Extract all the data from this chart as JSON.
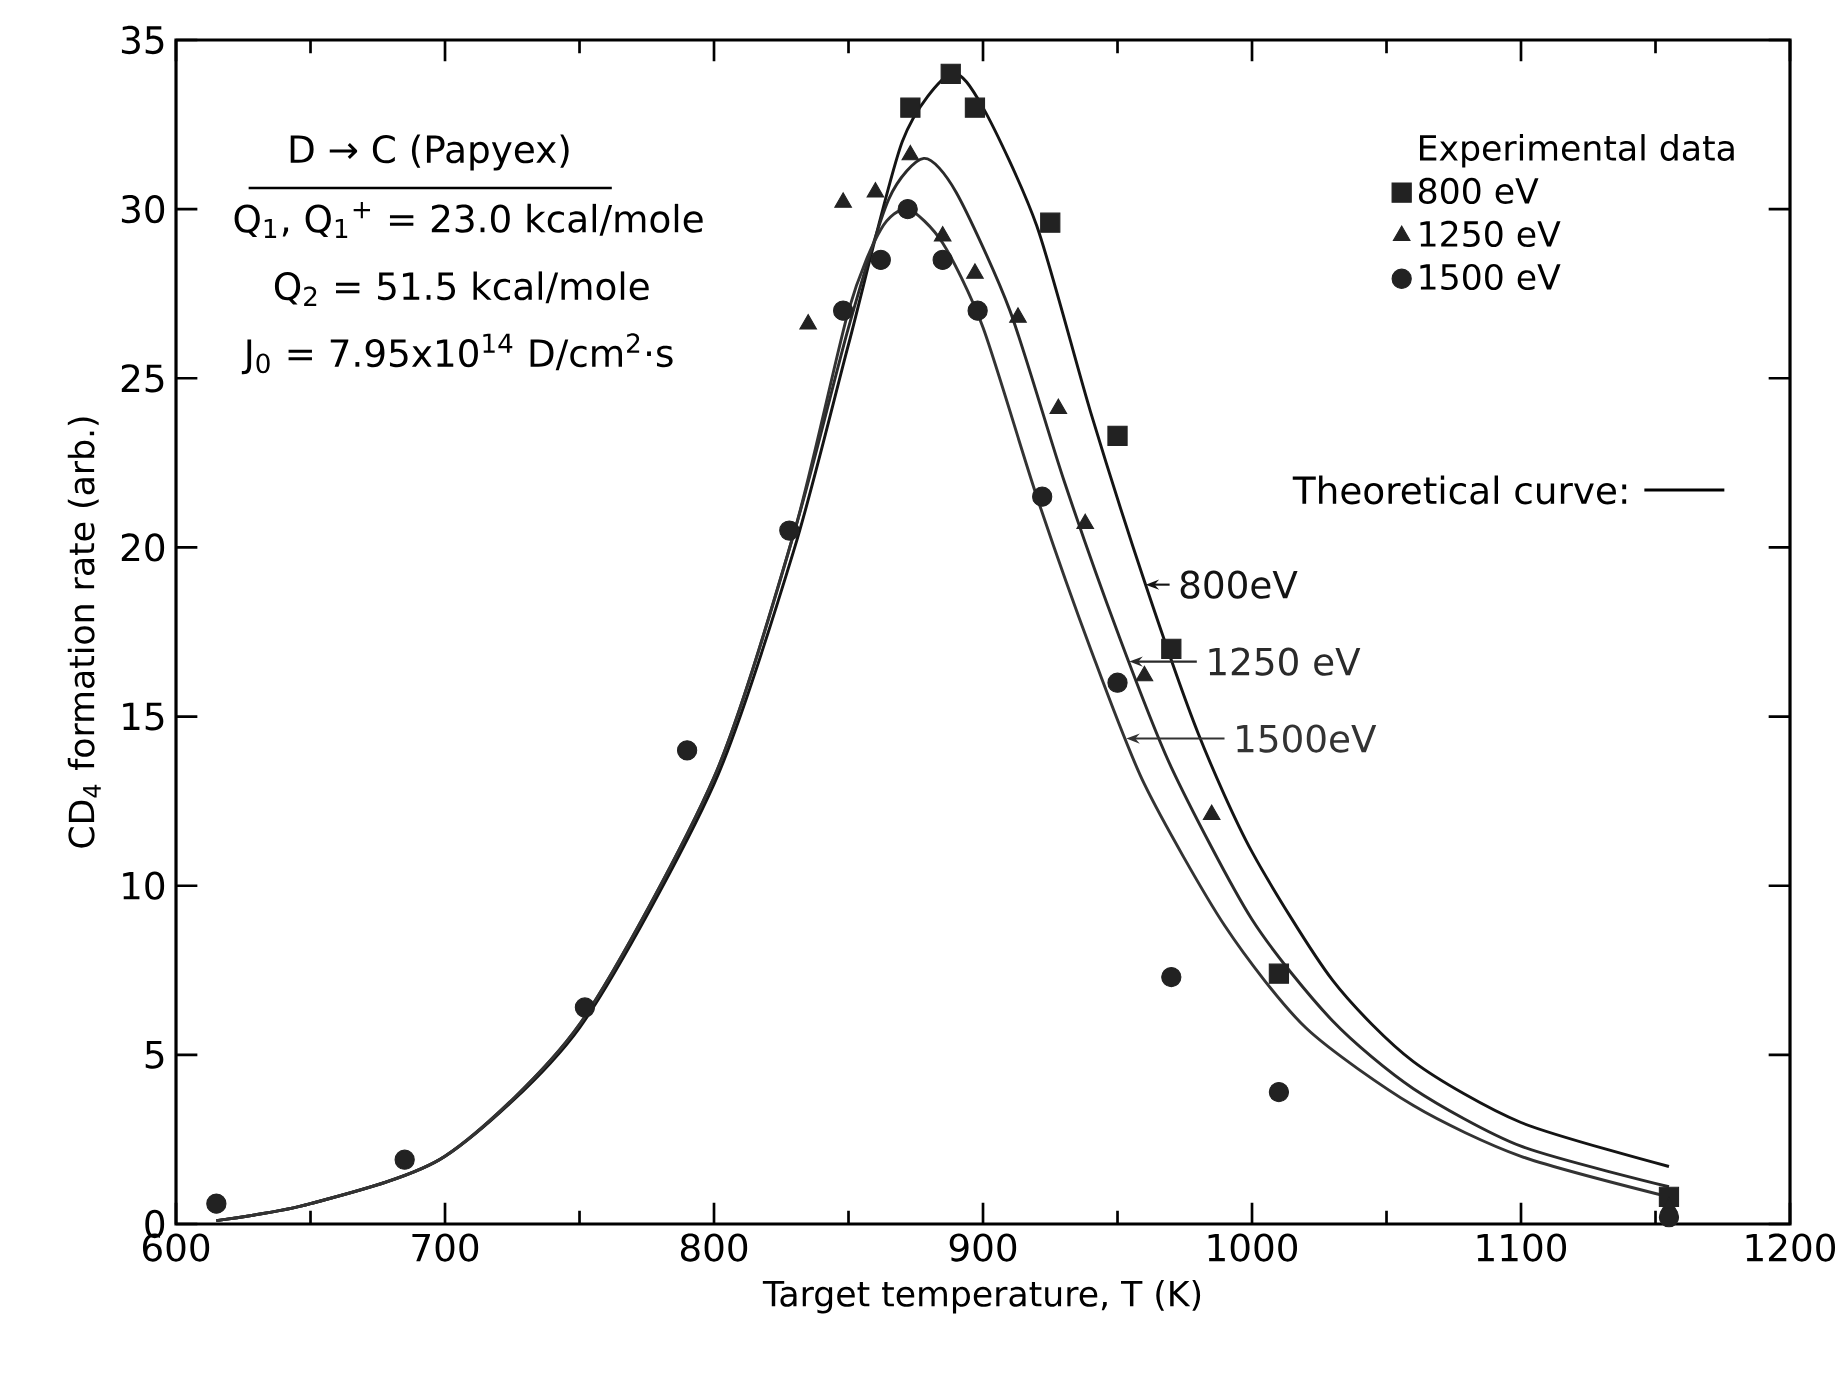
{
  "chart_data": {
    "type": "scatter",
    "xlabel": "Target temperature, T (K)",
    "ylabel": "CD$_{4}$ formation rate (arb.)",
    "xlim": [
      600,
      1200
    ],
    "ylim": [
      0,
      35
    ],
    "xticks": [
      600,
      700,
      800,
      900,
      1000,
      1100,
      1200
    ],
    "yticks": [
      0,
      5,
      10,
      15,
      20,
      25,
      30,
      35
    ],
    "legend": "top right",
    "legend_title": "Experimental data",
    "annotations": [
      "D → C (Papyex)",
      "Q$_{1}$, Q$_{1}$$^{+}$ = 23.0 kcal/mole",
      "Q$_{2}$ = 51.5 kcal/mole",
      "J$_{0}$ = 7.95x10$^{14}$ D/cm$^{2}$·s",
      "Theoretical curve:"
    ],
    "series": [
      {
        "name": "800 eV",
        "marker": "square",
        "color": "#222222",
        "x": [
          873,
          888,
          897,
          925,
          950,
          970,
          1010,
          1155
        ],
        "values": [
          33,
          34,
          33,
          29.6,
          23.3,
          17,
          7.4,
          0.8
        ]
      },
      {
        "name": "1250 eV",
        "marker": "triangle",
        "color": "#222222",
        "x": [
          835,
          848,
          860,
          873,
          885,
          897,
          913,
          928,
          938,
          960,
          985,
          1155
        ],
        "values": [
          26.6,
          30.2,
          30.5,
          31.6,
          29.2,
          28.1,
          26.8,
          24.1,
          20.7,
          16.2,
          12.1,
          0.5
        ]
      },
      {
        "name": "1500 eV",
        "marker": "circle",
        "color": "#222222",
        "x": [
          615,
          685,
          752,
          790,
          828,
          848,
          862,
          872,
          885,
          898,
          922,
          950,
          970,
          1010,
          1155
        ],
        "values": [
          0.6,
          1.9,
          6.4,
          14,
          20.5,
          27,
          28.5,
          30,
          28.5,
          27,
          21.5,
          16,
          7.3,
          3.9,
          0.2
        ]
      },
      {
        "name": "800eV",
        "type": "line",
        "marker": "none",
        "line_style": "solid",
        "color": "#141414",
        "x": [
          615,
          650,
          700,
          750,
          800,
          830,
          850,
          870,
          888,
          900,
          920,
          940,
          960,
          980,
          1000,
          1030,
          1060,
          1100,
          1155
        ],
        "values": [
          0.1,
          0.6,
          2.0,
          5.8,
          13,
          20,
          26,
          32,
          34,
          33,
          29.5,
          24,
          19,
          14.5,
          11,
          7.2,
          4.8,
          3,
          1.7
        ]
      },
      {
        "name": "1250 eV",
        "type": "line",
        "marker": "none",
        "line_style": "solid",
        "color": "#2a2a2a",
        "x": [
          615,
          650,
          700,
          750,
          800,
          830,
          850,
          865,
          878,
          890,
          910,
          930,
          950,
          970,
          1000,
          1030,
          1060,
          1100,
          1155
        ],
        "values": [
          0.1,
          0.6,
          2,
          5.9,
          13.2,
          20.5,
          26.5,
          30.3,
          31.5,
          30.5,
          27,
          22,
          17.5,
          13.5,
          9,
          6,
          4,
          2.3,
          1.1
        ]
      },
      {
        "name": "1500eV",
        "type": "line",
        "marker": "none",
        "line_style": "solid",
        "color": "#333333",
        "x": [
          615,
          650,
          700,
          750,
          800,
          830,
          850,
          862,
          872,
          885,
          900,
          920,
          940,
          960,
          990,
          1020,
          1060,
          1100,
          1155
        ],
        "values": [
          0.1,
          0.6,
          2,
          5.9,
          13.2,
          20.5,
          27,
          29.4,
          30,
          29,
          26.5,
          21.5,
          17,
          13,
          8.8,
          5.8,
          3.5,
          2,
          0.8
        ]
      }
    ]
  }
}
